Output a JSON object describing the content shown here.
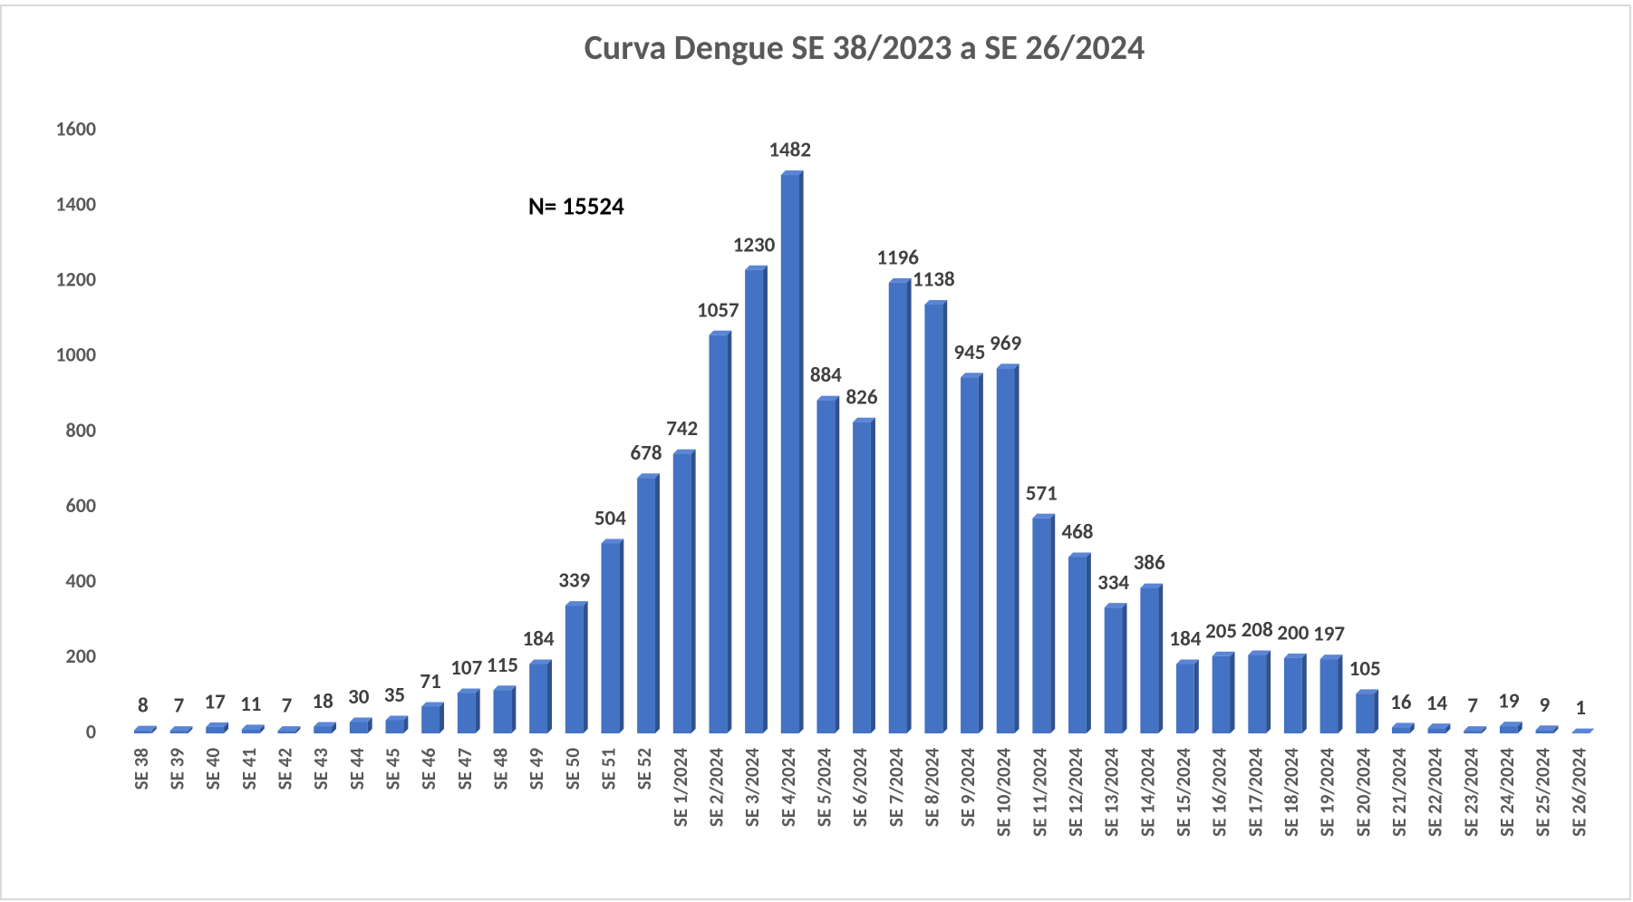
{
  "chart_data": {
    "type": "bar",
    "title": "Curva Dengue SE 38/2023 a SE 26/2024",
    "annotation": "N= 15524",
    "categories": [
      "SE 38",
      "SE 39",
      "SE 40",
      "SE 41",
      "SE 42",
      "SE 43",
      "SE 44",
      "SE 45",
      "SE 46",
      "SE 47",
      "SE 48",
      "SE 49",
      "SE 50",
      "SE 51",
      "SE 52",
      "SE 1/2024",
      "SE 2/2024",
      "SE 3/2024",
      "SE 4/2024",
      "SE 5/2024",
      "SE 6/2024",
      "SE 7/2024",
      "SE 8/2024",
      "SE 9/2024",
      "SE 10/2024",
      "SE 11/2024",
      "SE 12/2024",
      "SE 13/2024",
      "SE 14/2024",
      "SE 15/2024",
      "SE 16/2024",
      "SE 17/2024",
      "SE 18/2024",
      "SE 19/2024",
      "SE 20/2024",
      "SE 21/2024",
      "SE 22/2024",
      "SE 23/2024",
      "SE 24/2024",
      "SE 25/2024",
      "SE 26/2024"
    ],
    "values": [
      8,
      7,
      17,
      11,
      7,
      18,
      30,
      35,
      71,
      107,
      115,
      184,
      339,
      504,
      678,
      742,
      1057,
      1230,
      1482,
      884,
      826,
      1196,
      1138,
      945,
      969,
      571,
      468,
      334,
      386,
      184,
      205,
      208,
      200,
      197,
      105,
      16,
      14,
      7,
      19,
      9,
      1
    ],
    "color": "#4472c4",
    "ylim": [
      0,
      1600
    ],
    "yticks": [
      0,
      200,
      400,
      600,
      800,
      1000,
      1200,
      1400,
      1600
    ],
    "grid": false
  }
}
